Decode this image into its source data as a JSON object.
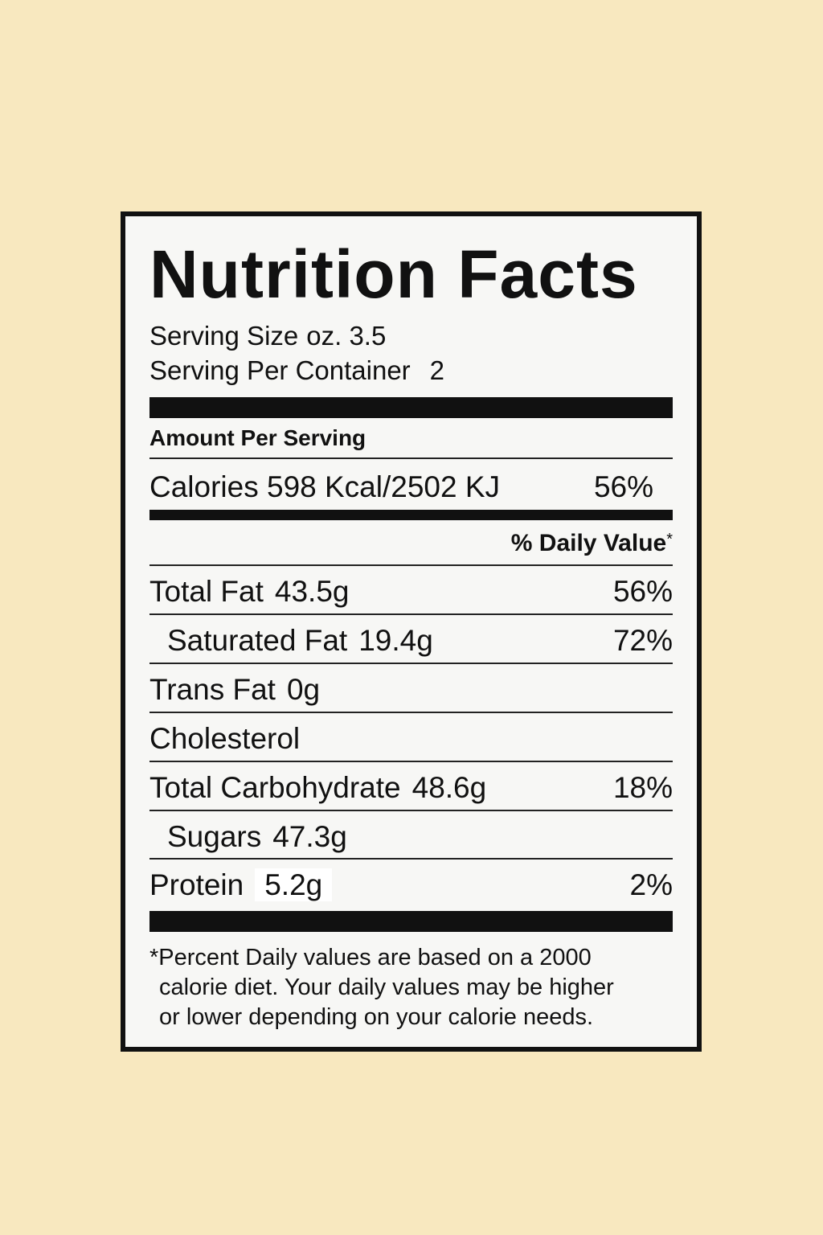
{
  "label": {
    "title": "Nutrition Facts",
    "serving_size_label": "Serving Size",
    "serving_size_value": "oz. 3.5",
    "servings_label": "Serving Per Container",
    "servings_value": "2",
    "amount_per_serving": "Amount Per Serving",
    "calories": {
      "text": "Calories 598 Kcal/2502 KJ",
      "pct": "56%"
    },
    "daily_value_header": "% Daily Value",
    "daily_value_mark": "*",
    "nutrients": [
      {
        "name": "Total Fat",
        "amount": "43.5g",
        "pct": "56%"
      },
      {
        "name": "Saturated Fat",
        "amount": "19.4g",
        "pct": "72%"
      },
      {
        "name": "Trans Fat",
        "amount": "0g",
        "pct": ""
      },
      {
        "name": "Cholesterol",
        "amount": "",
        "pct": ""
      },
      {
        "name": "Total Carbohydrate",
        "amount": "48.6g",
        "pct": "18%"
      },
      {
        "name": "Sugars",
        "amount": "47.3g",
        "pct": ""
      },
      {
        "name": "Protein",
        "amount": "5.2g",
        "pct": "2%"
      }
    ],
    "footnote": [
      "*Percent Daily values are based on a 2000",
      "calorie diet. Your daily values may be higher",
      "or lower depending on your calorie needs."
    ]
  }
}
